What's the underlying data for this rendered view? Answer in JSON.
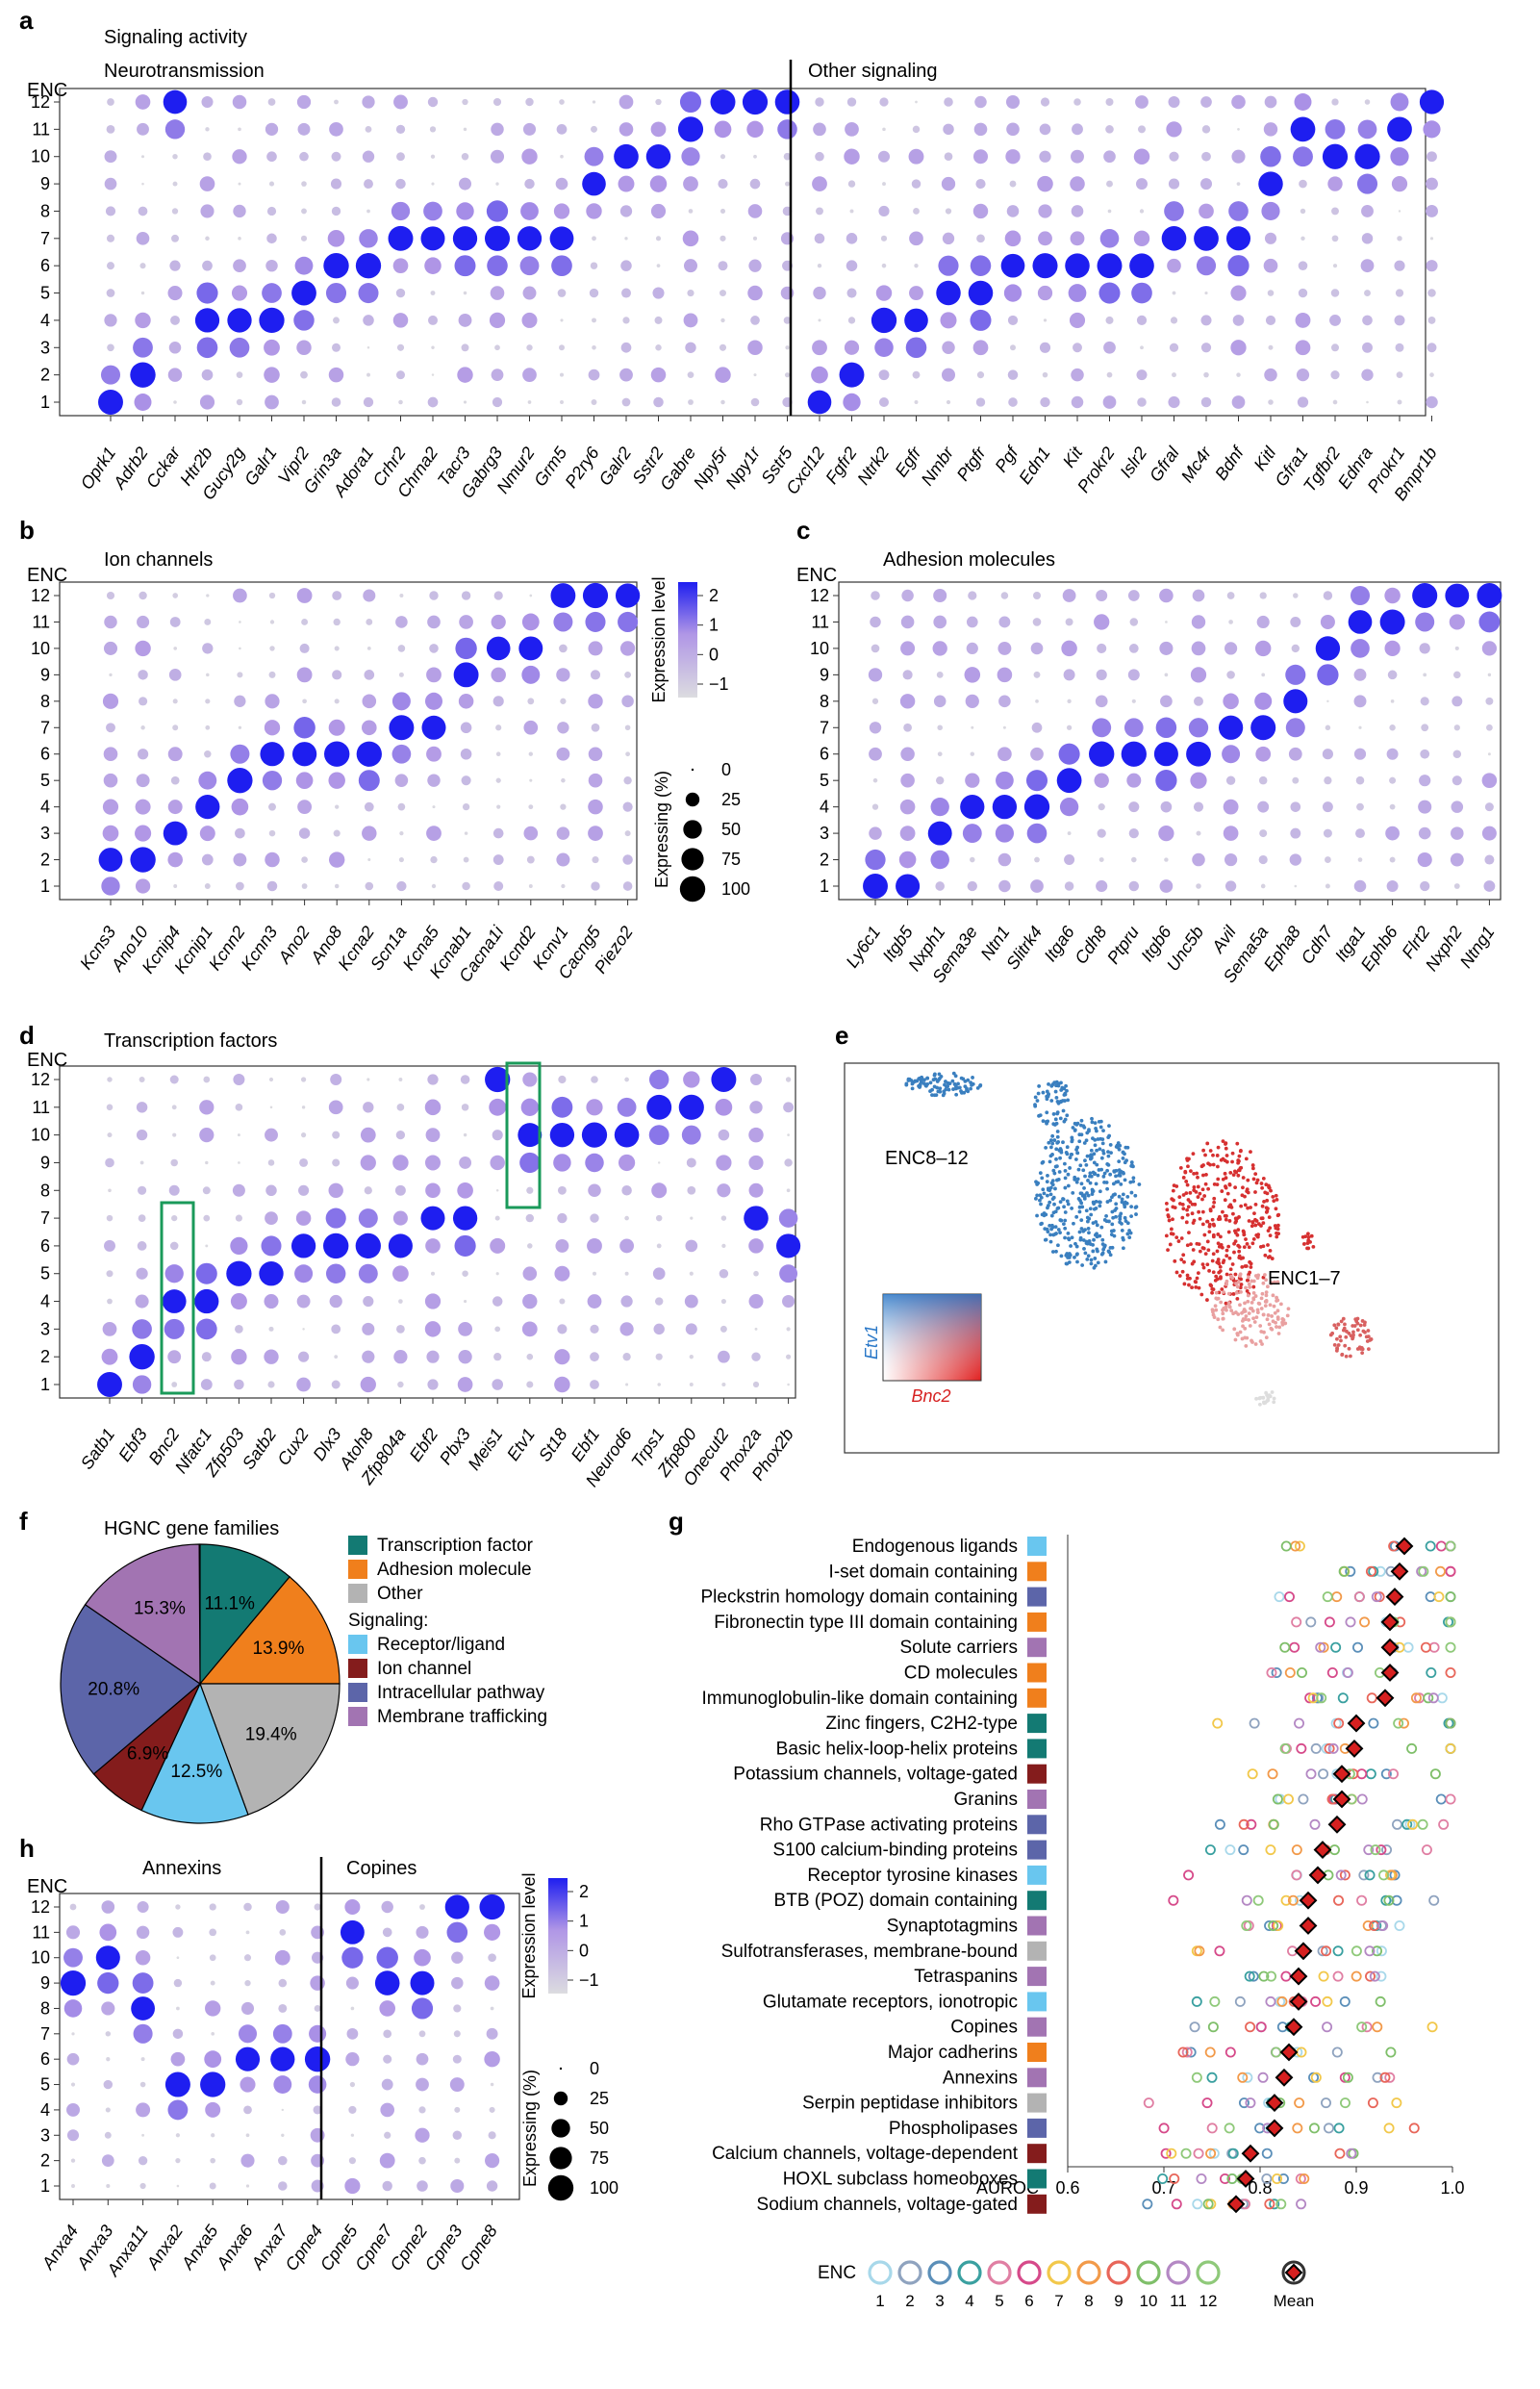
{
  "panels": {
    "a": {
      "letter": "a",
      "subtitle": "Signaling activity",
      "axis_title": "ENC",
      "group_left": "Neurotransmission",
      "group_right": "Other signaling",
      "genes": [
        "Oprk1",
        "Adrb2",
        "Cckar",
        "Htr2b",
        "Gucy2g",
        "Galr1",
        "Vipr2",
        "Grin3a",
        "Adora1",
        "Crhr2",
        "Chrna2",
        "Tacr3",
        "Gabrg3",
        "Nmur2",
        "Grm5",
        "P2ry6",
        "Galr2",
        "Sstr2",
        "Gabre",
        "Npy5r",
        "Npy1r",
        "Sstr5",
        "Cxcl12",
        "Fgfr2",
        "Ntrk2",
        "Egfr",
        "Nmbr",
        "Ptgfr",
        "Pgf",
        "Edn1",
        "Kit",
        "Prokr2",
        "Islr2",
        "Gfral",
        "Mc4r",
        "Bdnf",
        "Kitl",
        "Gfra1",
        "Tgfbr2",
        "Ednra",
        "Prokr1",
        "Bmpr1b"
      ]
    },
    "b": {
      "letter": "b",
      "subtitle": "Ion channels",
      "axis_title": "ENC",
      "genes": [
        "Kcns3",
        "Ano10",
        "Kcnip4",
        "Kcnip1",
        "Kcnn2",
        "Kcnn3",
        "Ano2",
        "Ano8",
        "Kcna2",
        "Scn1a",
        "Kcna5",
        "Kcnab1",
        "Cacna1i",
        "Kcnd2",
        "Kcnv1",
        "Cacng5",
        "Piezo2"
      ]
    },
    "c": {
      "letter": "c",
      "subtitle": "Adhesion molecules",
      "axis_title": "ENC",
      "genes": [
        "Ly6c1",
        "Itgb5",
        "Nxph1",
        "Sema3e",
        "Ntn1",
        "Slitrk4",
        "Itga6",
        "Cdh8",
        "Ptpru",
        "Itgb6",
        "Unc5b",
        "Avil",
        "Sema5a",
        "Epha8",
        "Cdh7",
        "Itga1",
        "Ephb6",
        "Flrt2",
        "Nxph2",
        "Ntng1"
      ]
    },
    "d": {
      "letter": "d",
      "subtitle": "Transcription factors",
      "axis_title": "ENC",
      "genes": [
        "Satb1",
        "Ebf3",
        "Bnc2",
        "Nfatc1",
        "Zfp503",
        "Satb2",
        "Cux2",
        "Dlx3",
        "Atoh8",
        "Zfp804a",
        "Ebf2",
        "Pbx3",
        "Meis1",
        "Etv1",
        "St18",
        "Ebf1",
        "Neurod6",
        "Trps1",
        "Zfp800",
        "Onecut2",
        "Phox2a",
        "Phox2b"
      ]
    },
    "e": {
      "letter": "e",
      "label_top": "ENC8–12",
      "label_bottom": "ENC1–7",
      "legend_y": "Etv1",
      "legend_x": "Bnc2"
    },
    "f": {
      "letter": "f",
      "title": "HGNC gene families",
      "legend_signaling": "Signaling:",
      "slices": [
        {
          "label": "Transcription factor",
          "percent": 11.1,
          "text": "11.1%",
          "color": "#137a73"
        },
        {
          "label": "Adhesion molecule",
          "percent": 13.9,
          "text": "13.9%",
          "color": "#f07f1c"
        },
        {
          "label": "Other",
          "percent": 19.4,
          "text": "19.4%",
          "color": "#b3b3b3"
        },
        {
          "label": "Receptor/ligand",
          "percent": 12.5,
          "text": "12.5%",
          "color": "#69c6ef"
        },
        {
          "label": "Ion channel",
          "percent": 6.9,
          "text": "6.9%",
          "color": "#841c1c"
        },
        {
          "label": "Intracellular pathway",
          "percent": 20.8,
          "text": "20.8%",
          "color": "#5c65a9"
        },
        {
          "label": "Membrane trafficking",
          "percent": 15.3,
          "text": "15.3%",
          "color": "#a274b2"
        }
      ]
    },
    "g": {
      "letter": "g",
      "xlabel": "AUROC",
      "xticks": [
        "0.6",
        "0.7",
        "0.8",
        "0.9",
        "1.0"
      ],
      "legend_title": "ENC",
      "legend_mean": "Mean",
      "enc_colors": [
        "#a8d8ea",
        "#8fa3bf",
        "#5b8fb9",
        "#3aa0a0",
        "#e07fa3",
        "#d64a8a",
        "#f2c84b",
        "#f29a4a",
        "#e8665a",
        "#7fbf6a",
        "#b488c4",
        "#8fc97a"
      ]
    },
    "h": {
      "letter": "h",
      "axis_title": "ENC",
      "group_left": "Annexins",
      "group_right": "Copines",
      "genes": [
        "Anxa4",
        "Anxa3",
        "Anxa11",
        "Anxa2",
        "Anxa5",
        "Anxa6",
        "Anxa7",
        "Cpne4",
        "Cpne5",
        "Cpne7",
        "Cpne2",
        "Cpne3",
        "Cpne8"
      ]
    }
  },
  "legend_expr": {
    "title": "Expression level",
    "ticks": [
      "2",
      "1",
      "0",
      "−1"
    ]
  },
  "legend_pct": {
    "title": "Expressing (%)",
    "ticks": [
      "0",
      "25",
      "50",
      "75",
      "100"
    ]
  },
  "chart_data": [
    {
      "panel": "f",
      "type": "pie",
      "title": "HGNC gene families",
      "categories": [
        "Transcription factor",
        "Adhesion molecule",
        "Other",
        "Receptor/ligand",
        "Ion channel",
        "Intracellular pathway",
        "Membrane trafficking"
      ],
      "values": [
        11.1,
        13.9,
        19.4,
        12.5,
        6.9,
        20.8,
        15.3
      ]
    },
    {
      "panel": "g",
      "type": "scatter",
      "xlabel": "AUROC",
      "xlim": [
        0.6,
        1.0
      ],
      "categories": [
        {
          "name": "Endogenous ligands",
          "cat": "Receptor/ligand",
          "mean": 0.95
        },
        {
          "name": "I-set domain containing",
          "cat": "Adhesion molecule",
          "mean": 0.945
        },
        {
          "name": "Pleckstrin homology domain containing",
          "cat": "Intracellular pathway",
          "mean": 0.94
        },
        {
          "name": "Fibronectin type III domain containing",
          "cat": "Adhesion molecule",
          "mean": 0.935
        },
        {
          "name": "Solute carriers",
          "cat": "Membrane trafficking",
          "mean": 0.935
        },
        {
          "name": "CD molecules",
          "cat": "Adhesion molecule",
          "mean": 0.935
        },
        {
          "name": "Immunoglobulin-like domain containing",
          "cat": "Adhesion molecule",
          "mean": 0.93
        },
        {
          "name": "Zinc fingers, C2H2-type",
          "cat": "Transcription factor",
          "mean": 0.9
        },
        {
          "name": "Basic helix-loop-helix proteins",
          "cat": "Transcription factor",
          "mean": 0.898
        },
        {
          "name": "Potassium channels, voltage-gated",
          "cat": "Ion channel",
          "mean": 0.885
        },
        {
          "name": "Granins",
          "cat": "Membrane trafficking",
          "mean": 0.885
        },
        {
          "name": "Rho GTPase activating proteins",
          "cat": "Intracellular pathway",
          "mean": 0.88
        },
        {
          "name": "S100 calcium-binding proteins",
          "cat": "Intracellular pathway",
          "mean": 0.865
        },
        {
          "name": "Receptor tyrosine kinases",
          "cat": "Receptor/ligand",
          "mean": 0.86
        },
        {
          "name": "BTB (POZ) domain containing",
          "cat": "Transcription factor",
          "mean": 0.85
        },
        {
          "name": "Synaptotagmins",
          "cat": "Membrane trafficking",
          "mean": 0.85
        },
        {
          "name": "Sulfotransferases, membrane-bound",
          "cat": "Other",
          "mean": 0.845
        },
        {
          "name": "Tetraspanins",
          "cat": "Membrane trafficking",
          "mean": 0.84
        },
        {
          "name": "Glutamate receptors, ionotropic",
          "cat": "Receptor/ligand",
          "mean": 0.84
        },
        {
          "name": "Copines",
          "cat": "Membrane trafficking",
          "mean": 0.835
        },
        {
          "name": "Major cadherins",
          "cat": "Adhesion molecule",
          "mean": 0.83
        },
        {
          "name": "Annexins",
          "cat": "Membrane trafficking",
          "mean": 0.825
        },
        {
          "name": "Serpin peptidase inhibitors",
          "cat": "Other",
          "mean": 0.815
        },
        {
          "name": "Phospholipases",
          "cat": "Intracellular pathway",
          "mean": 0.815
        },
        {
          "name": "Calcium channels, voltage-dependent",
          "cat": "Ion channel",
          "mean": 0.79
        },
        {
          "name": "HOXL subclass homeoboxes",
          "cat": "Transcription factor",
          "mean": 0.785
        },
        {
          "name": "Sodium channels, voltage-gated",
          "cat": "Ion channel",
          "mean": 0.775
        }
      ]
    },
    {
      "panel": "dotplots",
      "type": "scatter",
      "note": "Dot plots: rows ENC1–ENC12, columns genes; top expressing cluster per gene",
      "peaks_a": [
        1,
        2,
        12,
        4,
        4,
        4,
        5,
        6,
        6,
        7,
        7,
        7,
        7,
        7,
        7,
        9,
        10,
        10,
        11,
        12,
        12,
        12,
        1,
        2,
        4,
        4,
        5,
        5,
        6,
        6,
        6,
        6,
        6,
        7,
        7,
        7,
        9,
        11,
        10,
        10,
        11,
        12
      ],
      "peaks_b": [
        2,
        2,
        3,
        4,
        5,
        6,
        6,
        6,
        6,
        7,
        7,
        9,
        10,
        10,
        12,
        12,
        12
      ],
      "peaks_c": [
        1,
        1,
        3,
        4,
        4,
        4,
        5,
        6,
        6,
        6,
        6,
        7,
        7,
        8,
        10,
        11,
        11,
        12,
        12,
        12
      ],
      "peaks_d": [
        1,
        2,
        4,
        4,
        5,
        5,
        6,
        6,
        6,
        6,
        7,
        7,
        12,
        10,
        10,
        10,
        10,
        11,
        11,
        12,
        7,
        6
      ],
      "peaks_h": [
        9,
        10,
        8,
        5,
        5,
        6,
        6,
        6,
        11,
        9,
        9,
        12,
        12
      ]
    }
  ]
}
